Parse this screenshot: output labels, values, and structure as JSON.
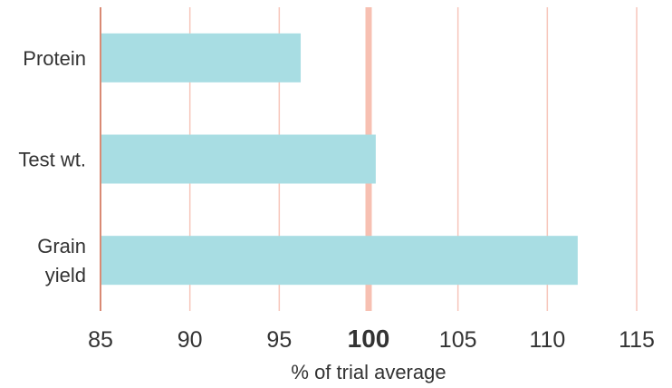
{
  "chart_data": {
    "type": "bar",
    "orientation": "horizontal",
    "categories": [
      [
        "Protein"
      ],
      [
        "Test wt."
      ],
      [
        "Grain",
        "yield"
      ]
    ],
    "values": [
      96.2,
      100.4,
      111.7
    ],
    "xlabel": "% of trial average",
    "xlim": [
      85,
      115
    ],
    "xticks": [
      85,
      90,
      95,
      100,
      105,
      110,
      115
    ],
    "reference_value": 100,
    "grid": "vertical",
    "colors": {
      "bar": "#a8dde3",
      "grid": "#f7c6bb",
      "reference_line": "#f7c0b2",
      "axis": "#d98a74"
    }
  }
}
